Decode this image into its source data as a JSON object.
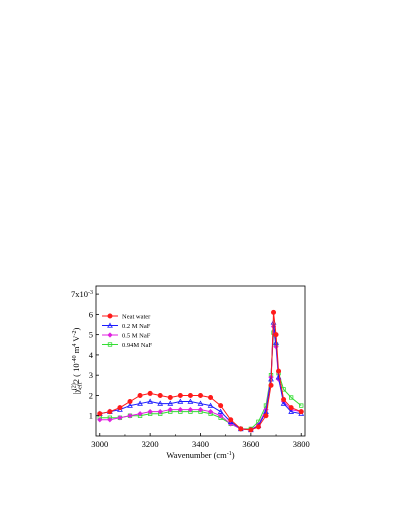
{
  "chart_data": {
    "type": "line",
    "xlabel_main": "Wavenumber (cm",
    "xlabel_sup": "-1",
    "xlabel_close": ")",
    "xlim": [
      2985,
      3815
    ],
    "ylim": [
      0,
      7.4
    ],
    "x_ticks": [
      "3000",
      "3200",
      "3400",
      "3600",
      "3800"
    ],
    "x_tick_values": [
      3000,
      3200,
      3400,
      3600,
      3800
    ],
    "y_ticks": [
      "1",
      "2",
      "3",
      "4",
      "5",
      "6"
    ],
    "y_tick_values": [
      1,
      2,
      3,
      4,
      5,
      6
    ],
    "y_top_tick": {
      "value": 7,
      "base": "7x10",
      "exp": "-3"
    },
    "ylabel": {
      "prefix": "|χ",
      "sub": "eff",
      "sup": "(2)",
      "bar_sup": "2",
      "unit_open": " ( 10",
      "unit_exp": "-40",
      "unit_m": " m",
      "unit_m_exp": "4",
      "unit_v": "V",
      "unit_v_exp": "-2",
      "unit_close": ")"
    },
    "legend_position": "top-left",
    "grid": false,
    "series": [
      {
        "name": "Neat water",
        "color": "#ff1a1a",
        "marker": "circle",
        "x": [
          3000,
          3040,
          3080,
          3120,
          3160,
          3200,
          3240,
          3280,
          3320,
          3360,
          3400,
          3440,
          3480,
          3520,
          3560,
          3600,
          3630,
          3660,
          3680,
          3690,
          3700,
          3710,
          3730,
          3760,
          3800
        ],
        "y": [
          1.1,
          1.2,
          1.4,
          1.7,
          2.0,
          2.1,
          2.0,
          1.9,
          2.0,
          2.0,
          2.0,
          1.9,
          1.5,
          0.8,
          0.35,
          0.3,
          0.45,
          1.0,
          2.5,
          6.1,
          5.0,
          3.2,
          1.8,
          1.4,
          1.2
        ]
      },
      {
        "name": "0.2  M NaF",
        "color": "#1a1aff",
        "marker": "triangle",
        "x": [
          3000,
          3040,
          3080,
          3120,
          3160,
          3200,
          3240,
          3280,
          3320,
          3360,
          3400,
          3440,
          3480,
          3520,
          3560,
          3600,
          3630,
          3660,
          3680,
          3690,
          3700,
          3710,
          3730,
          3760,
          3800
        ],
        "y": [
          1.1,
          1.2,
          1.3,
          1.5,
          1.6,
          1.7,
          1.6,
          1.6,
          1.7,
          1.7,
          1.6,
          1.5,
          1.2,
          0.7,
          0.35,
          0.3,
          0.5,
          1.2,
          2.8,
          5.6,
          4.6,
          2.9,
          1.6,
          1.2,
          1.1
        ]
      },
      {
        "name": "0.5  M NaF",
        "color": "#e020e0",
        "marker": "diamond",
        "x": [
          3000,
          3040,
          3080,
          3120,
          3160,
          3200,
          3240,
          3280,
          3320,
          3360,
          3400,
          3440,
          3480,
          3520,
          3560,
          3600,
          3630,
          3660,
          3680,
          3690,
          3700,
          3710,
          3730,
          3760,
          3800
        ],
        "y": [
          0.8,
          0.8,
          0.9,
          1.0,
          1.1,
          1.2,
          1.2,
          1.3,
          1.3,
          1.3,
          1.3,
          1.2,
          1.0,
          0.6,
          0.35,
          0.3,
          0.55,
          1.3,
          2.9,
          5.4,
          4.4,
          2.8,
          1.7,
          1.3,
          1.2
        ]
      },
      {
        "name": "0.94M NaF",
        "color": "#33dd33",
        "marker": "square",
        "x": [
          3000,
          3040,
          3080,
          3120,
          3160,
          3200,
          3240,
          3280,
          3320,
          3360,
          3400,
          3440,
          3480,
          3520,
          3560,
          3600,
          3630,
          3660,
          3680,
          3690,
          3700,
          3710,
          3730,
          3760,
          3800
        ],
        "y": [
          0.9,
          0.9,
          0.9,
          1.0,
          1.0,
          1.1,
          1.1,
          1.2,
          1.2,
          1.2,
          1.2,
          1.1,
          0.9,
          0.6,
          0.35,
          0.35,
          0.7,
          1.5,
          3.0,
          5.1,
          4.5,
          3.1,
          2.3,
          1.9,
          1.5
        ]
      }
    ]
  }
}
